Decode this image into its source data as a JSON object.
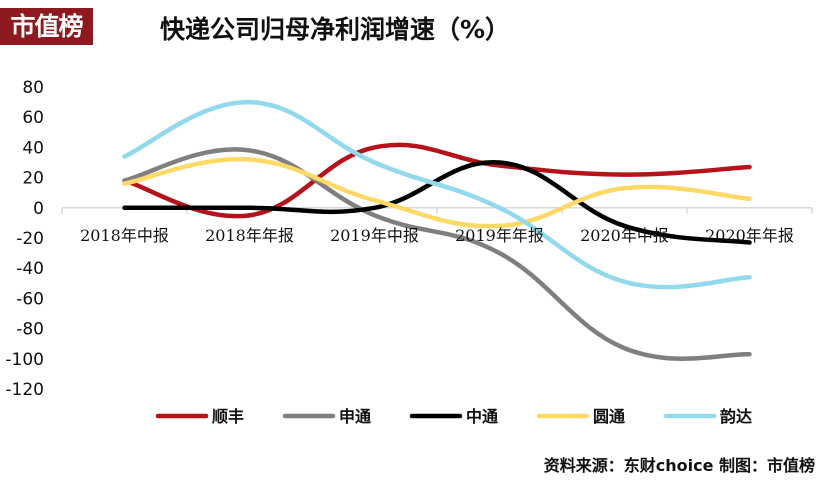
{
  "brand": {
    "logo_text": "市值榜"
  },
  "footer": {
    "source_text": "资料来源：东财choice  制图：市值榜"
  },
  "chart_data": {
    "type": "line",
    "title": "快递公司归母净利润增速（%）",
    "xlabel": "",
    "ylabel": "",
    "categories": [
      "2018年中报",
      "2018年年报",
      "2019年中报",
      "2019年年报",
      "2020年中报",
      "2020年年报"
    ],
    "ylim": [
      -120,
      80
    ],
    "yticks": [
      80,
      60,
      40,
      20,
      0,
      -20,
      -40,
      -60,
      -80,
      -100,
      -120
    ],
    "grid": false,
    "legend_position": "bottom",
    "series": [
      {
        "name": "顺丰",
        "color": "#b5121b",
        "values": [
          18,
          -5,
          40,
          28,
          22,
          27
        ]
      },
      {
        "name": "申通",
        "color": "#7f7f7f",
        "values": [
          18,
          38,
          -5,
          -30,
          -93,
          -97
        ]
      },
      {
        "name": "中通",
        "color": "#000000",
        "values": [
          0,
          0,
          0,
          30,
          -12,
          -23
        ]
      },
      {
        "name": "圆通",
        "color": "#ffd966",
        "values": [
          16,
          32,
          5,
          -12,
          13,
          6
        ]
      },
      {
        "name": "韵达",
        "color": "#92d9ee",
        "values": [
          34,
          70,
          30,
          0,
          -49,
          -46
        ]
      }
    ]
  }
}
